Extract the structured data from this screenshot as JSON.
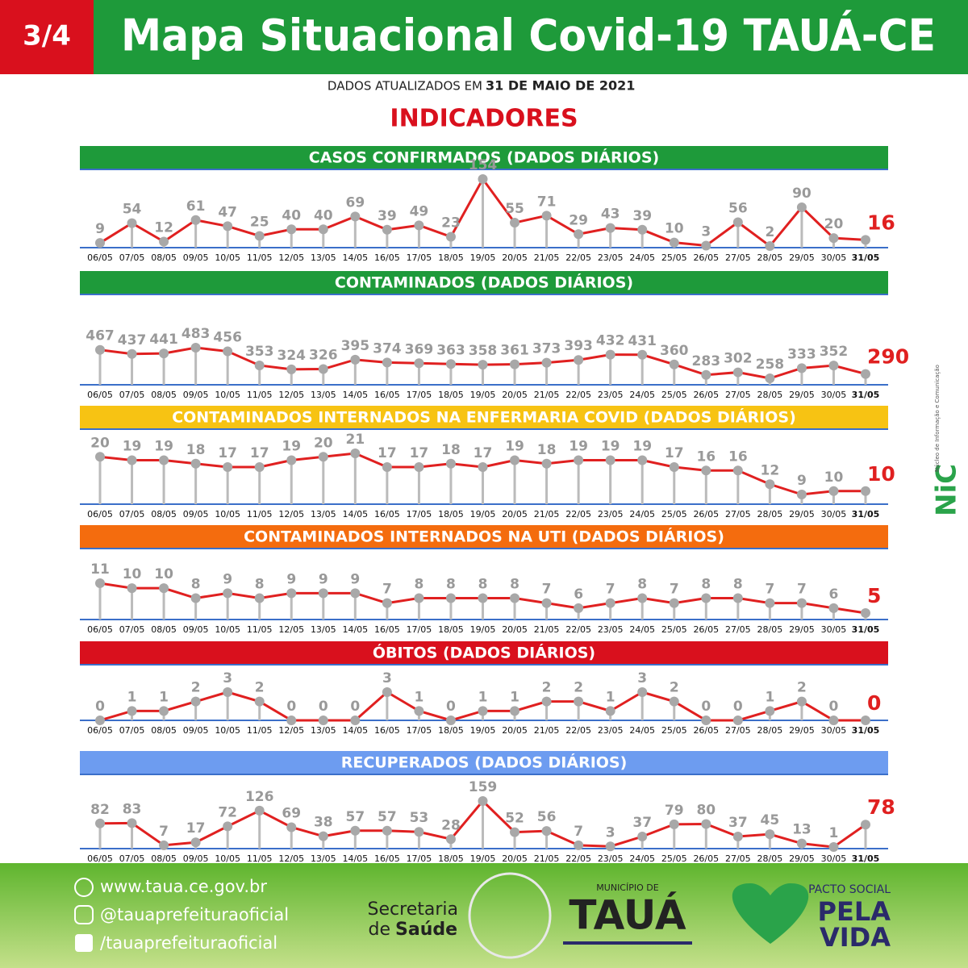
{
  "header": {
    "page": "3/4",
    "title": "Mapa Situacional Covid-19 TAUÁ-CE",
    "updated_prefix": "DADOS ATUALIZADOS EM",
    "updated_date": "31 DE MAIO DE 2021",
    "section": "INDICADORES"
  },
  "chart_data": [
    {
      "type": "line",
      "title": "CASOS CONFIRMADOS  (DADOS DIÁRIOS)",
      "header_color": "#1e9a3a",
      "color": "#e02020",
      "marker_color": "#a8a8a8",
      "categories": [
        "06/05",
        "07/05",
        "08/05",
        "09/05",
        "10/05",
        "11/05",
        "12/05",
        "13/05",
        "14/05",
        "16/05",
        "17/05",
        "18/05",
        "19/05",
        "20/05",
        "21/05",
        "22/05",
        "23/05",
        "24/05",
        "25/05",
        "26/05",
        "27/05",
        "28/05",
        "29/05",
        "30/05",
        "31/05"
      ],
      "values": [
        9,
        54,
        12,
        61,
        47,
        25,
        40,
        40,
        69,
        39,
        49,
        23,
        154,
        55,
        71,
        29,
        43,
        39,
        10,
        3,
        56,
        2,
        90,
        20,
        16
      ]
    },
    {
      "type": "line",
      "title": "CONTAMINADOS  (DADOS DIÁRIOS)",
      "header_color": "#1e9a3a",
      "color": "#e02020",
      "marker_color": "#a8a8a8",
      "categories": [
        "06/05",
        "07/05",
        "08/05",
        "09/05",
        "10/05",
        "11/05",
        "12/05",
        "13/05",
        "14/05",
        "16/05",
        "17/05",
        "18/05",
        "19/05",
        "20/05",
        "21/05",
        "22/05",
        "23/05",
        "24/05",
        "25/05",
        "26/05",
        "27/05",
        "28/05",
        "29/05",
        "30/05",
        "31/05"
      ],
      "values": [
        467,
        437,
        441,
        483,
        456,
        353,
        324,
        326,
        395,
        374,
        369,
        363,
        358,
        361,
        373,
        393,
        432,
        431,
        360,
        283,
        302,
        258,
        333,
        352,
        290
      ]
    },
    {
      "type": "line",
      "title": "CONTAMINADOS INTERNADOS NA ENFERMARIA COVID  (DADOS DIÁRIOS)",
      "header_color": "#f7c313",
      "color": "#e02020",
      "marker_color": "#a8a8a8",
      "categories": [
        "06/05",
        "07/05",
        "08/05",
        "09/05",
        "10/05",
        "11/05",
        "12/05",
        "13/05",
        "14/05",
        "16/05",
        "17/05",
        "18/05",
        "19/05",
        "20/05",
        "21/05",
        "22/05",
        "23/05",
        "24/05",
        "25/05",
        "26/05",
        "27/05",
        "28/05",
        "29/05",
        "30/05",
        "31/05"
      ],
      "values": [
        20,
        19,
        19,
        18,
        17,
        17,
        19,
        20,
        21,
        17,
        17,
        18,
        17,
        19,
        18,
        19,
        19,
        19,
        17,
        16,
        16,
        12,
        9,
        10,
        10
      ]
    },
    {
      "type": "line",
      "title": "CONTAMINADOS INTERNADOS NA UTI  (DADOS DIÁRIOS)",
      "header_color": "#f46c0e",
      "color": "#e02020",
      "marker_color": "#a8a8a8",
      "categories": [
        "06/05",
        "07/05",
        "08/05",
        "09/05",
        "10/05",
        "11/05",
        "12/05",
        "13/05",
        "14/05",
        "16/05",
        "17/05",
        "18/05",
        "19/05",
        "20/05",
        "21/05",
        "22/05",
        "23/05",
        "24/05",
        "25/05",
        "26/05",
        "27/05",
        "28/05",
        "29/05",
        "30/05",
        "31/05"
      ],
      "values": [
        11,
        10,
        10,
        8,
        9,
        8,
        9,
        9,
        9,
        7,
        8,
        8,
        8,
        8,
        7,
        6,
        7,
        8,
        7,
        8,
        8,
        7,
        7,
        6,
        5
      ]
    },
    {
      "type": "line",
      "title": "ÓBITOS  (DADOS DIÁRIOS)",
      "header_color": "#d9101d",
      "color": "#e02020",
      "marker_color": "#a8a8a8",
      "categories": [
        "06/05",
        "07/05",
        "08/05",
        "09/05",
        "10/05",
        "11/05",
        "12/05",
        "13/05",
        "14/05",
        "16/05",
        "17/05",
        "18/05",
        "19/05",
        "20/05",
        "21/05",
        "22/05",
        "23/05",
        "24/05",
        "25/05",
        "26/05",
        "27/05",
        "28/05",
        "29/05",
        "30/05",
        "31/05"
      ],
      "values": [
        0,
        1,
        1,
        2,
        3,
        2,
        0,
        0,
        0,
        3,
        1,
        0,
        1,
        1,
        2,
        2,
        1,
        3,
        2,
        0,
        0,
        1,
        2,
        0,
        0
      ]
    },
    {
      "type": "line",
      "title": "RECUPERADOS (DADOS DIÁRIOS)",
      "header_color": "#6d9cf0",
      "color": "#e02020",
      "marker_color": "#a8a8a8",
      "categories": [
        "06/05",
        "07/05",
        "08/05",
        "09/05",
        "10/05",
        "11/05",
        "12/05",
        "13/05",
        "14/05",
        "16/05",
        "17/05",
        "18/05",
        "19/05",
        "20/05",
        "21/05",
        "22/05",
        "23/05",
        "24/05",
        "25/05",
        "26/05",
        "27/05",
        "28/05",
        "29/05",
        "30/05",
        "31/05"
      ],
      "values": [
        82,
        83,
        7,
        17,
        72,
        126,
        69,
        38,
        57,
        57,
        53,
        28,
        159,
        52,
        56,
        7,
        3,
        37,
        79,
        80,
        37,
        45,
        13,
        1,
        78
      ]
    }
  ],
  "side_logo": {
    "mark": "NiC",
    "text": "Núcleo de Informação e Comunicação"
  },
  "footer": {
    "website": "www.taua.ce.gov.br",
    "instagram": "@tauaprefeituraoficial",
    "facebook": "/tauaprefeituraoficial",
    "secretaria": "Secretaria",
    "saude_prefix": "de",
    "saude": "Saúde",
    "municipio": "MUNICÍPIO DE",
    "city": "TAUÁ",
    "pacto": "PACTO SOCIAL",
    "pela": "PELA",
    "vida": "VIDA"
  }
}
